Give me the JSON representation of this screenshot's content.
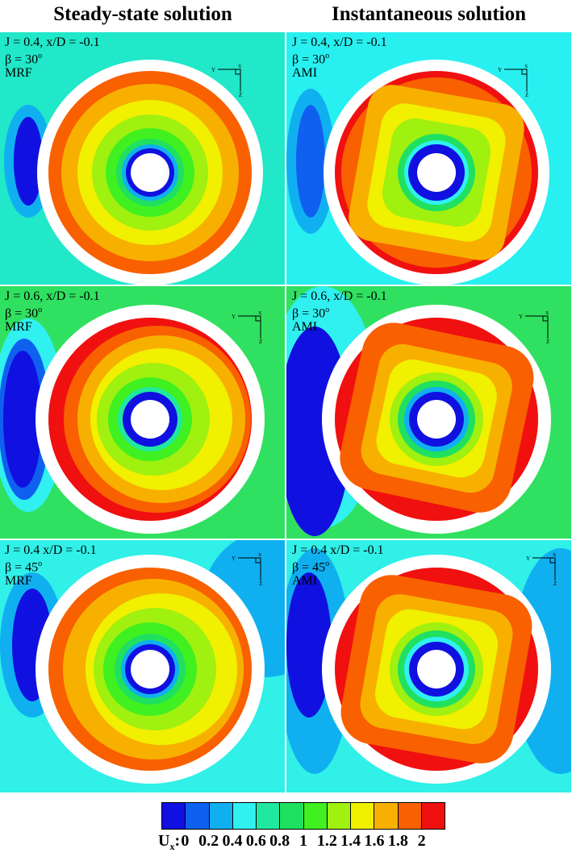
{
  "headers": {
    "left": "Steady-state solution",
    "right": "Instantaneous solution"
  },
  "panels": [
    {
      "id": "r1-left",
      "line1": "J = 0.4, x/D = -0.1",
      "beta_prefix": "β = 30",
      "beta_sup": "o",
      "method": "MRF",
      "bg": "#20e8c8"
    },
    {
      "id": "r1-right",
      "line1": "J = 0.4, x/D = -0.1",
      "beta_prefix": "β = 30",
      "beta_sup": "o",
      "method": "AMI",
      "bg": "#28f0f0"
    },
    {
      "id": "r2-left",
      "line1": "J = 0.6, x/D = -0.1",
      "beta_prefix": "β = 30",
      "beta_sup": "o",
      "method": "MRF",
      "bg": "#30e060"
    },
    {
      "id": "r2-right",
      "line1": "J = 0.6, x/D = -0.1",
      "beta_prefix": "β = 30",
      "beta_sup": "o",
      "method": "AMI",
      "bg": "#30e060"
    },
    {
      "id": "r3-left",
      "line1": "J = 0.4 x/D = -0.1",
      "beta_prefix": "β = 45",
      "beta_sup": "o",
      "method": "MRF",
      "bg": "#30f0e8"
    },
    {
      "id": "r3-right",
      "line1": "J = 0.4 x/D = -0.1",
      "beta_prefix": "β = 45",
      "beta_sup": "o",
      "method": "AMI",
      "bg": "#30f0e8"
    }
  ],
  "axis_labels": {
    "y": "Y",
    "x": "X",
    "z": "Z"
  },
  "legend": {
    "title": "U",
    "title_sub": "x",
    "title_suffix": ":",
    "ticks": [
      "0",
      "0.2",
      "0.4",
      "0.6",
      "0.8",
      "1",
      "1.2",
      "1.4",
      "1.6",
      "1.8",
      "2"
    ],
    "colors": [
      "#1010e0",
      "#1060f0",
      "#10b0f0",
      "#30f0f0",
      "#20e8a0",
      "#20e060",
      "#40f020",
      "#a0f010",
      "#f0f000",
      "#f8b000",
      "#f86000",
      "#f01010"
    ]
  }
}
